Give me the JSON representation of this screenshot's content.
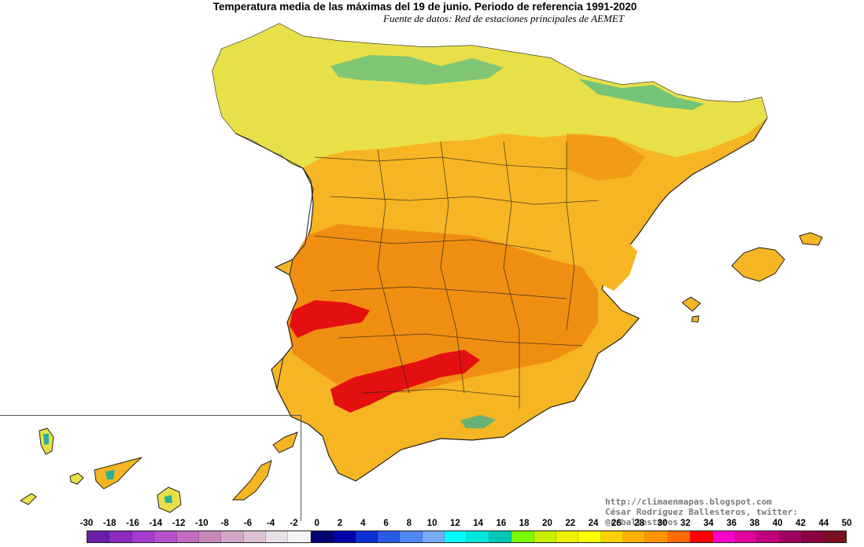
{
  "header": {
    "title": "Temperatura media de las máximas del 19 de junio. Periodo de referencia 1991-2020",
    "subtitle": "Fuente de datos: Red de estaciones principales de AEMET"
  },
  "credits": {
    "url": "http://climaenmapas.blogspot.com",
    "author": "César Rodríguez Ballesteros, twitter: @crballesteros"
  },
  "legend": {
    "labels": [
      "-30",
      "-18",
      "-16",
      "-14",
      "-12",
      "-10",
      "-8",
      "-6",
      "-4",
      "-2",
      "0",
      "2",
      "4",
      "6",
      "8",
      "10",
      "12",
      "14",
      "16",
      "18",
      "20",
      "22",
      "24",
      "26",
      "28",
      "30",
      "32",
      "34",
      "36",
      "38",
      "40",
      "42",
      "44",
      "50"
    ],
    "colors": [
      "#6a1fa8",
      "#8b2bbf",
      "#a63dcf",
      "#b551c8",
      "#c06cbf",
      "#c689b9",
      "#d1a5c5",
      "#dcc2d2",
      "#e7e0e6",
      "#f4f4f4",
      "#00006e",
      "#0000a8",
      "#0a2fd6",
      "#2a5ae6",
      "#4f86ef",
      "#78aaf4",
      "#00ffff",
      "#00e6d8",
      "#00c8b4",
      "#7cfc00",
      "#c8f000",
      "#f0f000",
      "#ffff00",
      "#ffd000",
      "#ffb000",
      "#ff9400",
      "#ff6a00",
      "#ff0000",
      "#ff00cc",
      "#e0009a",
      "#c0007c",
      "#a00060",
      "#8a0040",
      "#7a1020"
    ]
  },
  "map": {
    "region": "Península Ibérica, Baleares y Canarias",
    "accent_colors": {
      "cool": "#2ab09a",
      "mild": "#e8e048",
      "warm": "#f6b522",
      "hot": "#f08a10",
      "extreme": "#e41010"
    }
  }
}
